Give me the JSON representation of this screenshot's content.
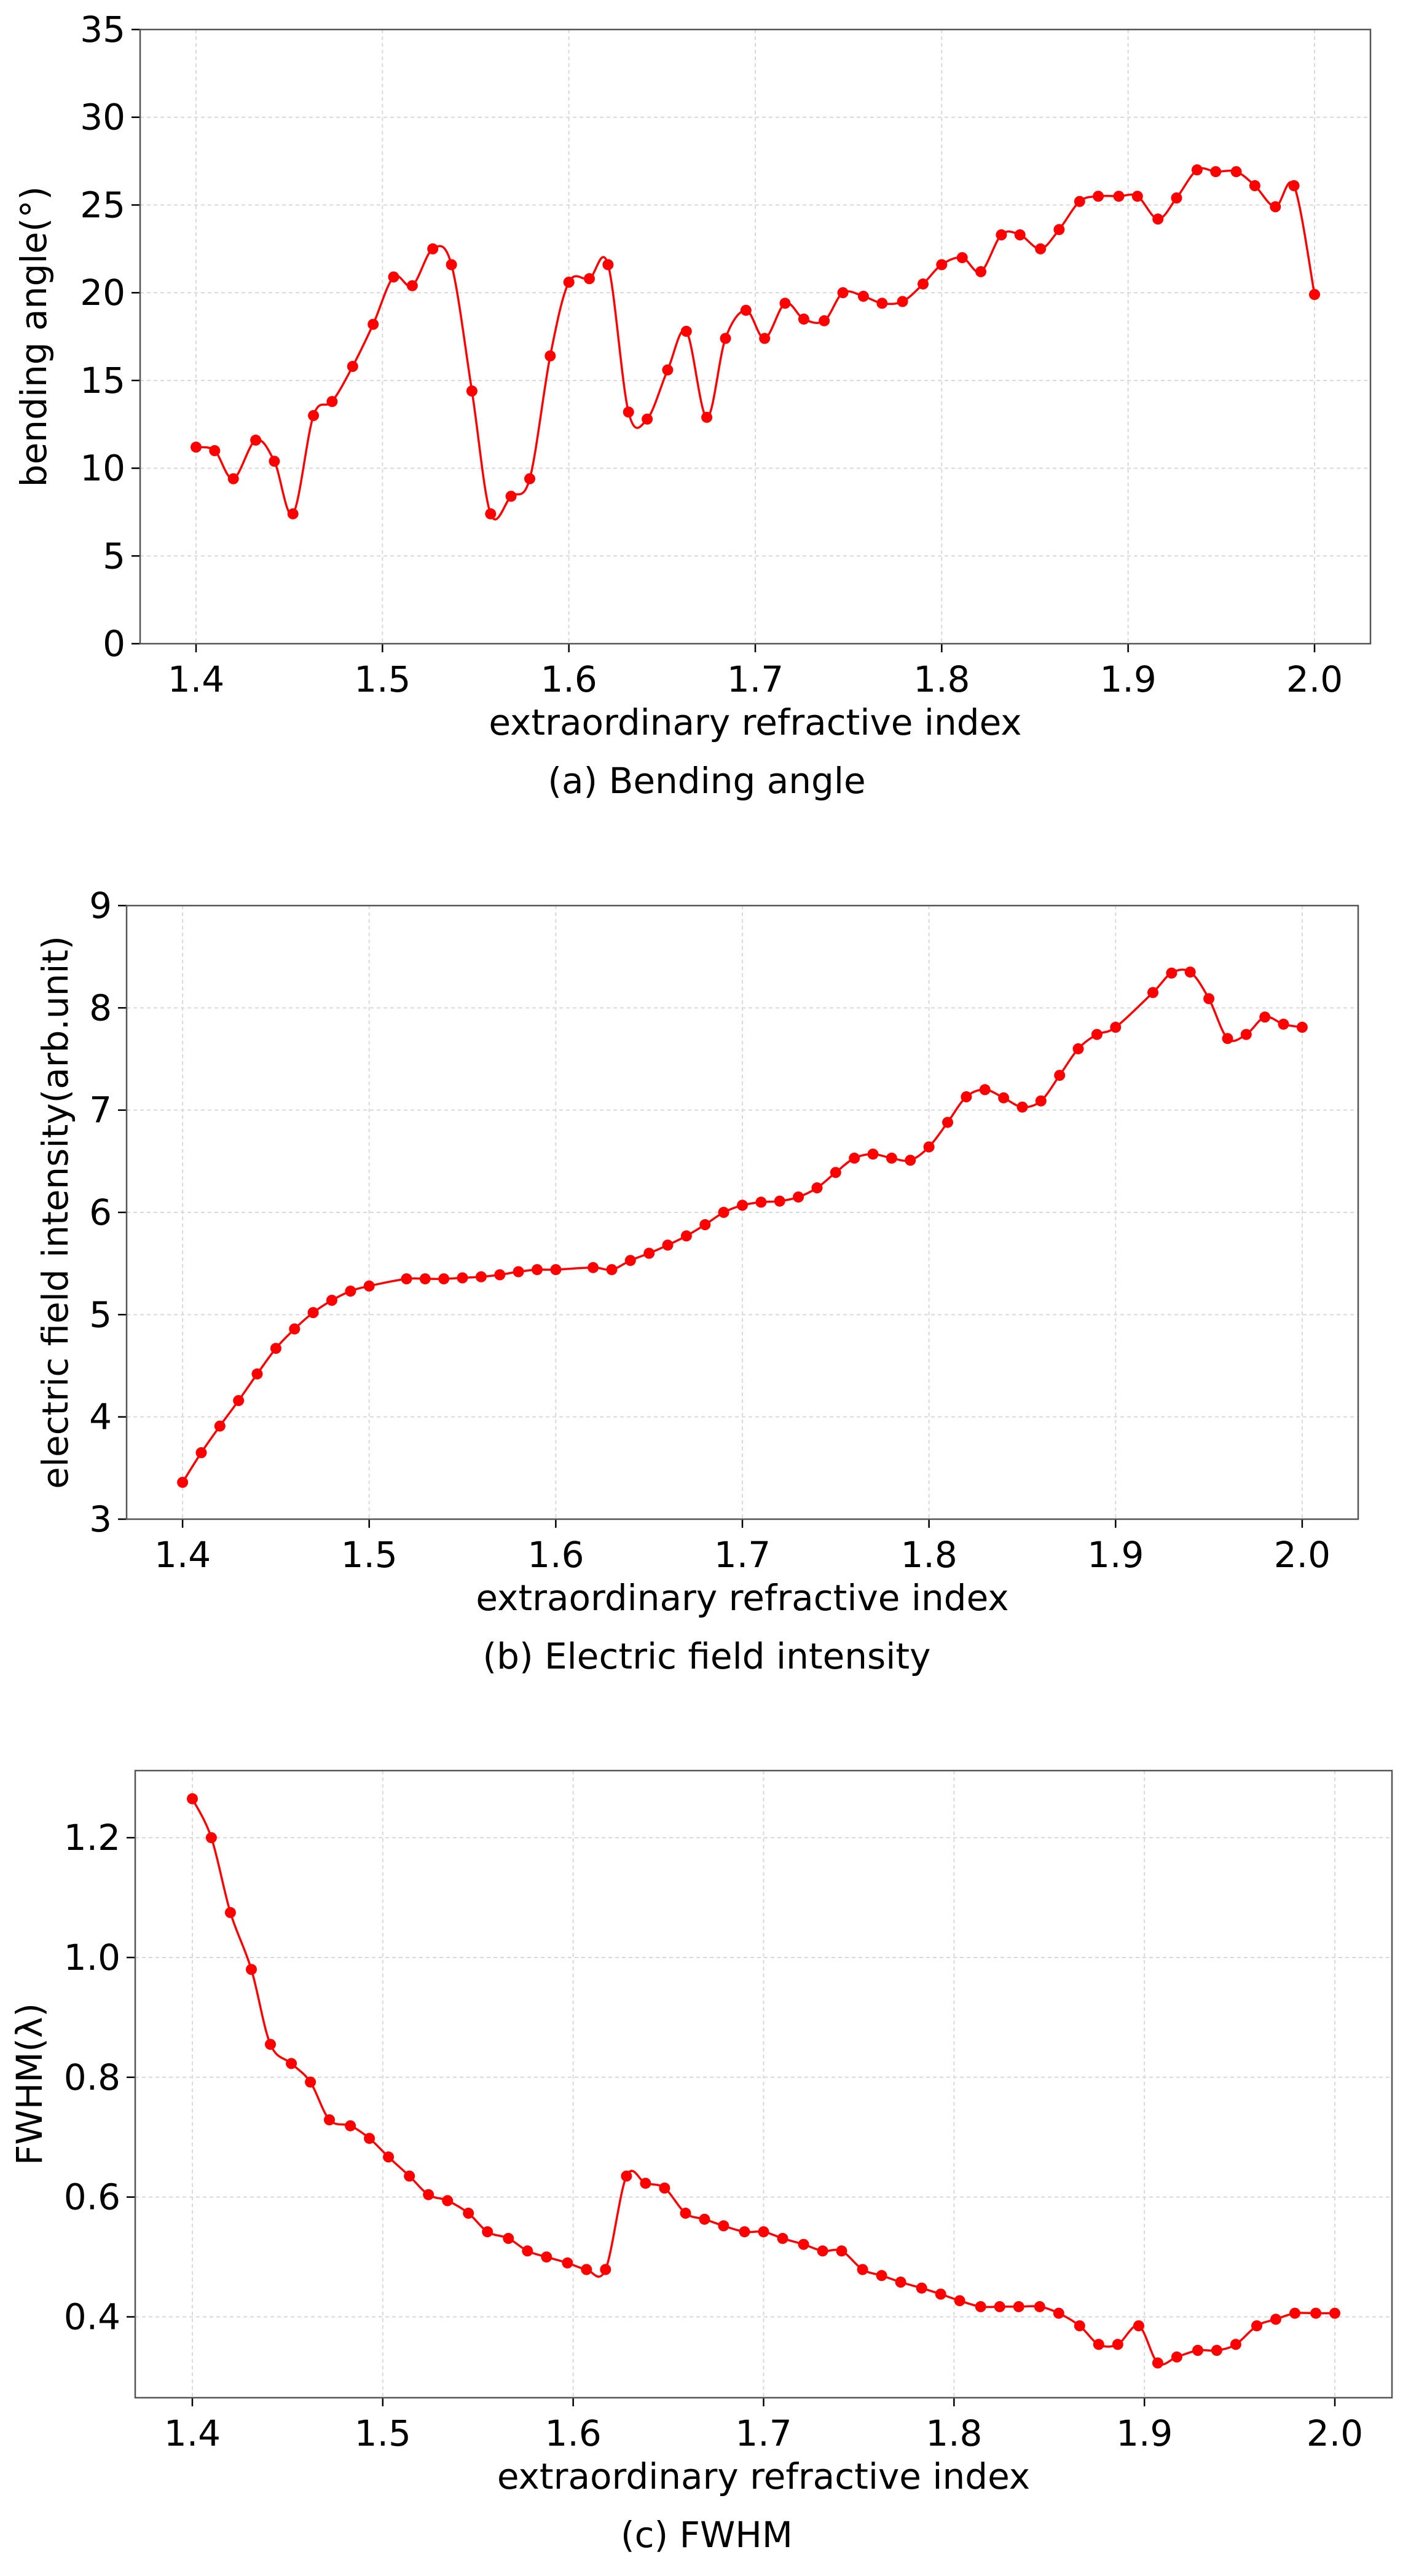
{
  "colors": {
    "series": "#ff0000"
  },
  "chart_data": [
    {
      "type": "line",
      "caption": "(a) Bending angle",
      "xlabel": "extraordinary refractive index",
      "ylabel": "bending angle(°)",
      "xlim": [
        1.37,
        2.03
      ],
      "ylim": [
        0,
        35
      ],
      "xticks": [
        1.4,
        1.5,
        1.6,
        1.7,
        1.8,
        1.9,
        2.0
      ],
      "xticklabels": [
        "1.4",
        "1.5",
        "1.6",
        "1.7",
        "1.8",
        "1.9",
        "2.0"
      ],
      "yticks": [
        0,
        5,
        10,
        15,
        20,
        25,
        30,
        35
      ],
      "yticklabels": [
        "0",
        "5",
        "10",
        "15",
        "20",
        "25",
        "30",
        "35"
      ],
      "grid": true,
      "series": [
        {
          "name": "bending angle",
          "x": [
            1.4,
            1.41,
            1.42,
            1.432,
            1.442,
            1.452,
            1.463,
            1.473,
            1.484,
            1.495,
            1.506,
            1.516,
            1.527,
            1.537,
            1.548,
            1.558,
            1.569,
            1.579,
            1.59,
            1.6,
            1.611,
            1.621,
            1.632,
            1.642,
            1.653,
            1.663,
            1.674,
            1.684,
            1.695,
            1.705,
            1.716,
            1.726,
            1.737,
            1.747,
            1.758,
            1.768,
            1.779,
            1.79,
            1.8,
            1.811,
            1.821,
            1.832,
            1.842,
            1.853,
            1.863,
            1.874,
            1.884,
            1.895,
            1.905,
            1.916,
            1.926,
            1.937,
            1.947,
            1.958,
            1.968,
            1.979,
            1.989,
            2.0
          ],
          "y": [
            11.2,
            11.0,
            9.4,
            11.6,
            10.4,
            7.4,
            13.0,
            13.8,
            15.8,
            18.2,
            20.9,
            20.4,
            22.5,
            21.6,
            14.4,
            7.4,
            8.4,
            9.4,
            16.4,
            20.6,
            20.8,
            21.6,
            13.2,
            12.8,
            15.6,
            17.8,
            12.9,
            17.4,
            19.0,
            17.4,
            19.4,
            18.5,
            18.4,
            20.0,
            19.8,
            19.4,
            19.5,
            20.5,
            21.6,
            22.0,
            21.2,
            23.3,
            23.3,
            22.5,
            23.6,
            25.2,
            25.5,
            25.5,
            25.5,
            24.2,
            25.4,
            27.0,
            26.9,
            26.9,
            26.1,
            24.9,
            26.1,
            19.9
          ]
        }
      ]
    },
    {
      "type": "line",
      "caption": "(b) Electric field intensity",
      "xlabel": "extraordinary refractive index",
      "ylabel": "electric field intensity(arb.unit)",
      "xlim": [
        1.37,
        2.03
      ],
      "ylim": [
        3,
        9
      ],
      "xticks": [
        1.4,
        1.5,
        1.6,
        1.7,
        1.8,
        1.9,
        2.0
      ],
      "xticklabels": [
        "1.4",
        "1.5",
        "1.6",
        "1.7",
        "1.8",
        "1.9",
        "2.0"
      ],
      "yticks": [
        3,
        4,
        5,
        6,
        7,
        8,
        9
      ],
      "yticklabels": [
        "3",
        "4",
        "5",
        "6",
        "7",
        "8",
        "9"
      ],
      "grid": true,
      "series": [
        {
          "name": "electric field intensity",
          "x": [
            1.4,
            1.41,
            1.42,
            1.43,
            1.44,
            1.45,
            1.46,
            1.47,
            1.48,
            1.49,
            1.5,
            1.52,
            1.53,
            1.54,
            1.55,
            1.56,
            1.57,
            1.58,
            1.59,
            1.6,
            1.62,
            1.63,
            1.64,
            1.65,
            1.66,
            1.67,
            1.68,
            1.69,
            1.7,
            1.71,
            1.72,
            1.73,
            1.74,
            1.75,
            1.76,
            1.77,
            1.78,
            1.79,
            1.8,
            1.81,
            1.82,
            1.83,
            1.84,
            1.85,
            1.86,
            1.87,
            1.88,
            1.89,
            1.9,
            1.92,
            1.93,
            1.94,
            1.95,
            1.96,
            1.97,
            1.98,
            1.99,
            2.0
          ],
          "y": [
            3.36,
            3.65,
            3.91,
            4.16,
            4.42,
            4.67,
            4.86,
            5.02,
            5.14,
            5.23,
            5.28,
            5.35,
            5.35,
            5.35,
            5.36,
            5.37,
            5.39,
            5.42,
            5.44,
            5.44,
            5.46,
            5.44,
            5.53,
            5.6,
            5.68,
            5.77,
            5.88,
            6.0,
            6.07,
            6.1,
            6.11,
            6.15,
            6.24,
            6.39,
            6.53,
            6.57,
            6.53,
            6.51,
            6.64,
            6.88,
            7.13,
            7.2,
            7.12,
            7.03,
            7.09,
            7.34,
            7.6,
            7.74,
            7.81,
            8.15,
            8.34,
            8.35,
            8.09,
            7.7,
            7.74,
            7.91,
            7.84,
            7.81
          ]
        }
      ]
    },
    {
      "type": "line",
      "caption": "(c) FWHM",
      "xlabel": "extraordinary refractive index",
      "ylabel": "FWHM(λ)",
      "xlim": [
        1.37,
        2.03
      ],
      "ylim": [
        0.265,
        1.312
      ],
      "xticks": [
        1.4,
        1.5,
        1.6,
        1.7,
        1.8,
        1.9,
        2.0
      ],
      "xticklabels": [
        "1.4",
        "1.5",
        "1.6",
        "1.7",
        "1.8",
        "1.9",
        "2.0"
      ],
      "yticks": [
        0.4,
        0.6,
        0.8,
        1.0,
        1.2
      ],
      "yticklabels": [
        "0.4",
        "0.6",
        "0.8",
        "1.0",
        "1.2"
      ],
      "grid": true,
      "series": [
        {
          "name": "FWHM",
          "x": [
            1.4,
            1.41,
            1.42,
            1.431,
            1.441,
            1.452,
            1.462,
            1.472,
            1.483,
            1.493,
            1.503,
            1.514,
            1.524,
            1.534,
            1.545,
            1.555,
            1.566,
            1.576,
            1.586,
            1.597,
            1.607,
            1.617,
            1.628,
            1.638,
            1.648,
            1.659,
            1.669,
            1.679,
            1.69,
            1.7,
            1.71,
            1.721,
            1.731,
            1.741,
            1.752,
            1.762,
            1.772,
            1.783,
            1.793,
            1.803,
            1.814,
            1.824,
            1.834,
            1.845,
            1.855,
            1.866,
            1.876,
            1.886,
            1.897,
            1.907,
            1.917,
            1.928,
            1.938,
            1.948,
            1.959,
            1.969,
            1.979,
            1.99,
            2.0
          ],
          "y": [
            1.265,
            1.2,
            1.075,
            0.98,
            0.855,
            0.823,
            0.792,
            0.729,
            0.719,
            0.698,
            0.667,
            0.635,
            0.604,
            0.594,
            0.573,
            0.542,
            0.531,
            0.51,
            0.5,
            0.49,
            0.479,
            0.479,
            0.635,
            0.623,
            0.615,
            0.573,
            0.563,
            0.552,
            0.542,
            0.542,
            0.531,
            0.521,
            0.51,
            0.51,
            0.479,
            0.469,
            0.458,
            0.448,
            0.438,
            0.427,
            0.417,
            0.417,
            0.417,
            0.417,
            0.406,
            0.385,
            0.354,
            0.354,
            0.385,
            0.323,
            0.333,
            0.344,
            0.344,
            0.354,
            0.385,
            0.396,
            0.406,
            0.406,
            0.406
          ]
        }
      ]
    }
  ]
}
